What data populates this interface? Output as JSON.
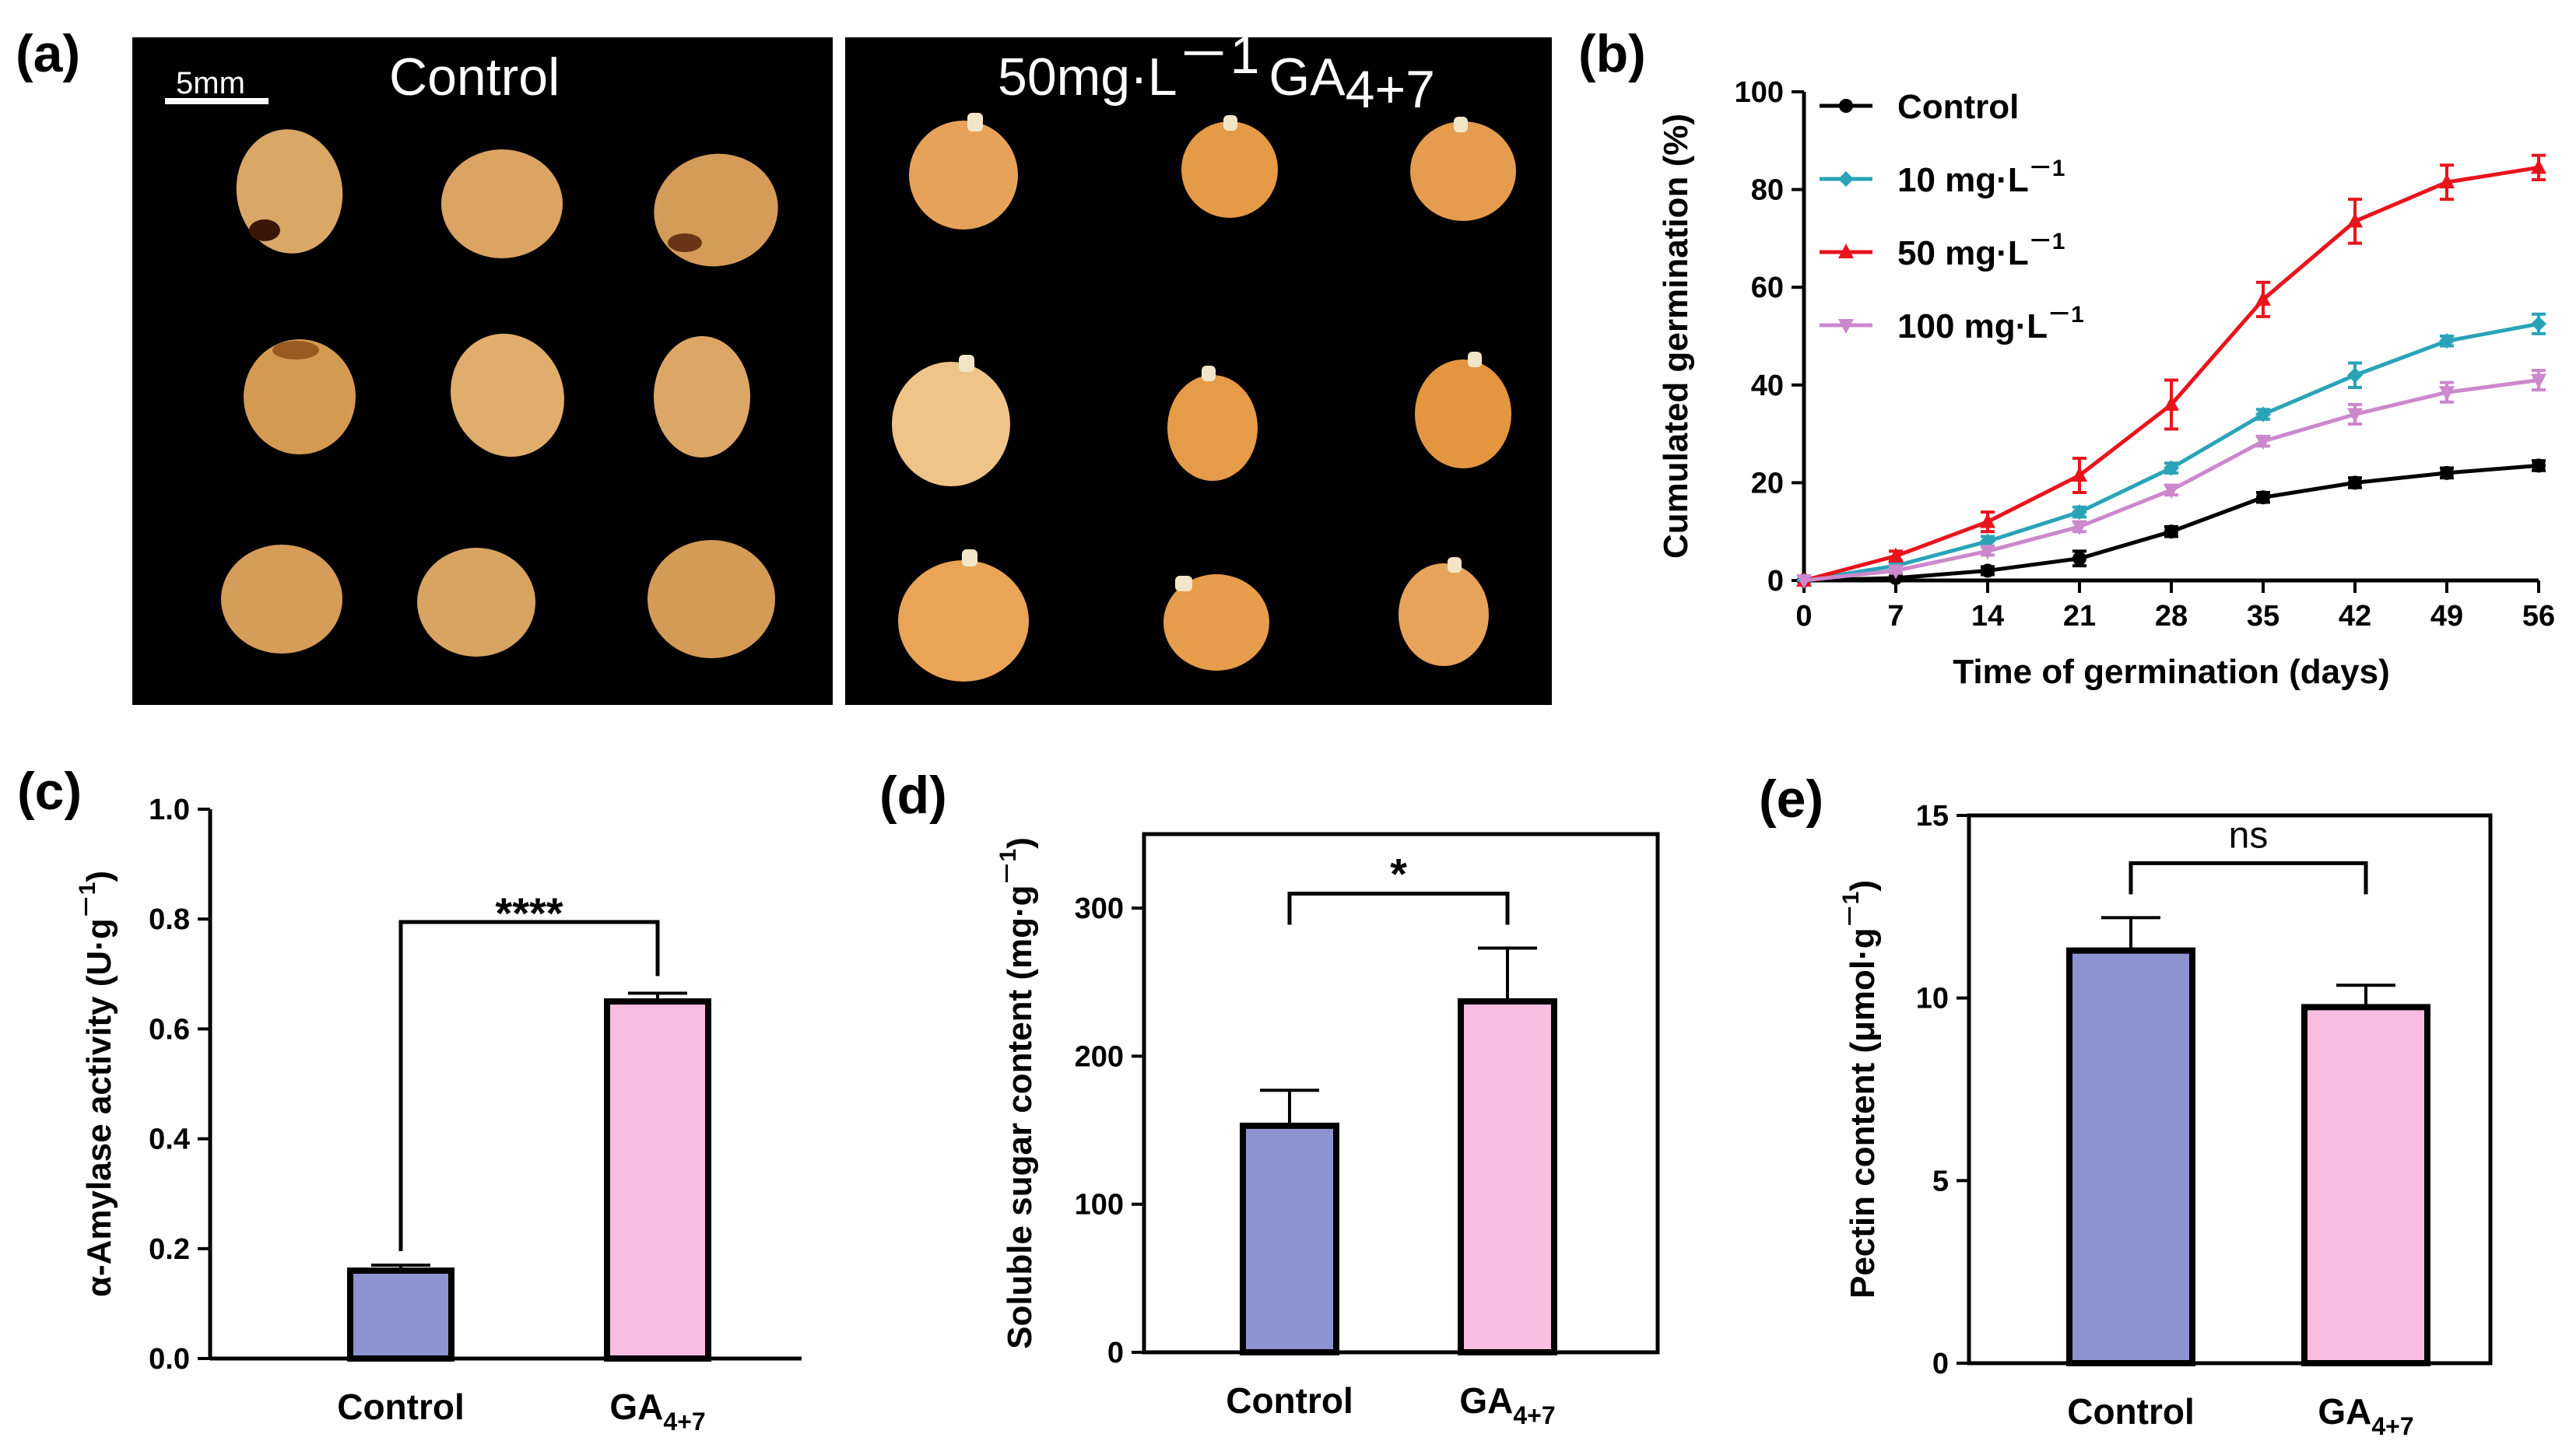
{
  "figure_labels": [
    "(a)",
    "(b)",
    "(c)",
    "(d)",
    "(e)"
  ],
  "photo_panel": {
    "control_title": "Control",
    "treated_title_main": "50mg·L",
    "treated_title_exp": "－1",
    "treated_title_ga": "GA",
    "treated_title_sub": "4+7",
    "scale_bar": "5mm"
  },
  "chart_data": [
    {
      "id": "b",
      "type": "line",
      "title": "",
      "xlabel": "Time of germination (days)",
      "ylabel": "Cumulated germination (%)",
      "x": [
        0,
        7,
        14,
        21,
        28,
        35,
        42,
        49,
        56
      ],
      "xlim": [
        0,
        56
      ],
      "ylim": [
        0,
        100
      ],
      "yticks": [
        0,
        20,
        40,
        60,
        80,
        100
      ],
      "legend_position": "top-left",
      "series": [
        {
          "name": "Control",
          "legend_main": "Control",
          "legend_exp": "",
          "color": "#000000",
          "marker": "circle",
          "values": [
            0,
            0.5,
            2,
            4.5,
            10,
            17,
            20,
            22,
            23.5
          ],
          "errors": [
            0,
            0.5,
            0.8,
            1.5,
            1,
            1,
            1,
            1,
            1
          ]
        },
        {
          "name": "10 mg·L－1",
          "legend_main": "10 mg·L",
          "legend_exp": "－1",
          "color": "#2aa3b8",
          "marker": "diamond",
          "values": [
            0,
            3,
            8,
            14,
            23,
            34,
            42,
            49,
            52.5
          ],
          "errors": [
            0,
            0.5,
            1,
            1,
            1,
            1,
            2.5,
            1,
            2
          ]
        },
        {
          "name": "50 mg·L－1",
          "legend_main": "50 mg·L",
          "legend_exp": "－1",
          "color": "#e8141c",
          "marker": "triangle-up",
          "values": [
            0,
            5,
            12,
            21.5,
            36,
            57.5,
            73.5,
            81.5,
            84.5
          ],
          "errors": [
            0,
            1,
            2,
            3.5,
            5,
            3.5,
            4.5,
            3.5,
            2.5
          ]
        },
        {
          "name": "100 mg·L－1",
          "legend_main": "100 mg·L",
          "legend_exp": "－1",
          "color": "#cc88cc",
          "marker": "triangle-down",
          "values": [
            0,
            2,
            6,
            11,
            18.5,
            28.5,
            34,
            38.5,
            41
          ],
          "errors": [
            0,
            0.5,
            0.8,
            1,
            1,
            1,
            2,
            2,
            2
          ]
        }
      ]
    },
    {
      "id": "c",
      "type": "bar",
      "title": "",
      "xlabel": "",
      "ylabel_main": "α-Amylase activity (U·g",
      "ylabel_exp": "－1",
      "ylabel_close": ")",
      "categories": [
        "Control",
        "GA4+7"
      ],
      "category_main": [
        "Control",
        "GA"
      ],
      "category_sub": [
        "",
        "4+7"
      ],
      "values": [
        0.16,
        0.65
      ],
      "errors": [
        0.01,
        0.015
      ],
      "colors": [
        "#8e94d0",
        "#f8bde0"
      ],
      "ylim": [
        0,
        1.0
      ],
      "yticks": [
        0.0,
        0.2,
        0.4,
        0.6,
        0.8,
        1.0
      ],
      "yticklabels": [
        "0.0",
        "0.2",
        "0.4",
        "0.6",
        "0.8",
        "1.0"
      ],
      "significance": "****",
      "bracket_style": "tall"
    },
    {
      "id": "d",
      "type": "bar",
      "title": "",
      "xlabel": "",
      "ylabel_main": "Soluble sugar content (mg·g",
      "ylabel_exp": "－1",
      "ylabel_close": ")",
      "categories": [
        "Control",
        "GA4+7"
      ],
      "category_main": [
        "Control",
        "GA"
      ],
      "category_sub": [
        "",
        "4+7"
      ],
      "values": [
        153,
        237
      ],
      "errors": [
        24,
        36
      ],
      "colors": [
        "#8e94d0",
        "#f8bde0"
      ],
      "ylim": [
        0,
        350
      ],
      "yticks": [
        0,
        100,
        200,
        300
      ],
      "yticklabels": [
        "0",
        "100",
        "200",
        "300"
      ],
      "significance": "*",
      "bracket_style": "short"
    },
    {
      "id": "e",
      "type": "bar",
      "title": "",
      "xlabel": "",
      "ylabel_main": "Pectin content (μmol·g",
      "ylabel_exp": "－1",
      "ylabel_close": ")",
      "categories": [
        "Control",
        "GA4+7"
      ],
      "category_main": [
        "Control",
        "GA"
      ],
      "category_sub": [
        "",
        "4+7"
      ],
      "values": [
        11.3,
        9.75
      ],
      "errors": [
        0.9,
        0.6
      ],
      "colors": [
        "#8e94d0",
        "#f8bde0"
      ],
      "ylim": [
        0,
        15
      ],
      "yticks": [
        0,
        5,
        10,
        15
      ],
      "yticklabels": [
        "0",
        "5",
        "10",
        "15"
      ],
      "significance": "ns",
      "bracket_style": "short"
    }
  ]
}
